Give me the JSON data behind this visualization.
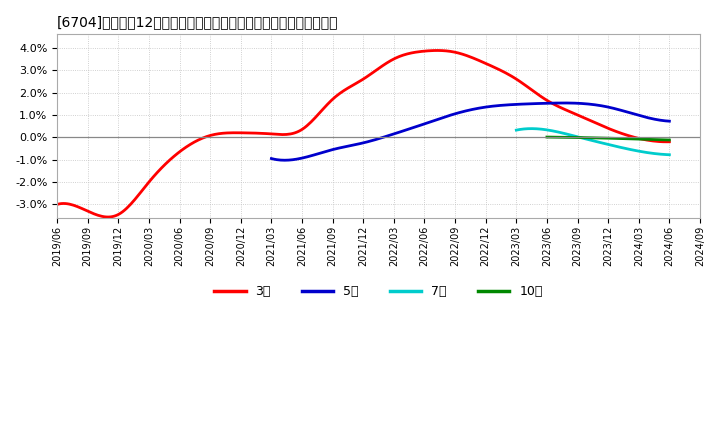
{
  "title": "[6704]　売上高12か月移動合計の対前年同期増減率の平均値の推移",
  "series": {
    "3年": {
      "color": "#ff0000",
      "dates": [
        "2019/06",
        "2019/09",
        "2019/12",
        "2020/03",
        "2020/06",
        "2020/09",
        "2020/12",
        "2021/03",
        "2021/06",
        "2021/09",
        "2021/12",
        "2022/03",
        "2022/06",
        "2022/09",
        "2022/12",
        "2023/03",
        "2023/06",
        "2023/09",
        "2023/12",
        "2024/03",
        "2024/06"
      ],
      "values": [
        -3.0,
        -3.3,
        -3.45,
        -2.0,
        -0.65,
        0.08,
        0.2,
        0.15,
        0.35,
        1.7,
        2.6,
        3.5,
        3.85,
        3.8,
        3.3,
        2.6,
        1.65,
        1.0,
        0.4,
        -0.05,
        -0.2
      ]
    },
    "5年": {
      "color": "#0000cc",
      "dates": [
        "2021/03",
        "2021/06",
        "2021/09",
        "2021/12",
        "2022/03",
        "2022/06",
        "2022/09",
        "2022/12",
        "2023/03",
        "2023/06",
        "2023/09",
        "2023/12",
        "2024/03",
        "2024/06"
      ],
      "values": [
        -0.95,
        -0.93,
        -0.55,
        -0.25,
        0.15,
        0.6,
        1.05,
        1.35,
        1.47,
        1.52,
        1.52,
        1.35,
        0.98,
        0.72
      ]
    },
    "7年": {
      "color": "#00cccc",
      "dates": [
        "2023/03",
        "2023/06",
        "2023/09",
        "2023/12",
        "2024/03",
        "2024/06"
      ],
      "values": [
        0.32,
        0.33,
        0.02,
        -0.32,
        -0.62,
        -0.78
      ]
    },
    "10年": {
      "color": "#008800",
      "dates": [
        "2023/06",
        "2023/09",
        "2023/12",
        "2024/03",
        "2024/06"
      ],
      "values": [
        0.01,
        -0.01,
        -0.04,
        -0.08,
        -0.12
      ]
    }
  },
  "xlim_start": "2019/06",
  "xlim_end": "2024/09",
  "ylim": [
    -3.6,
    4.6
  ],
  "yticks": [
    -3.0,
    -2.0,
    -1.0,
    0.0,
    1.0,
    2.0,
    3.0,
    4.0
  ],
  "xticks": [
    "2019/06",
    "2019/09",
    "2019/12",
    "2020/03",
    "2020/06",
    "2020/09",
    "2020/12",
    "2021/03",
    "2021/06",
    "2021/09",
    "2021/12",
    "2022/03",
    "2022/06",
    "2022/09",
    "2022/12",
    "2023/03",
    "2023/06",
    "2023/09",
    "2023/12",
    "2024/03",
    "2024/06",
    "2024/09"
  ],
  "background_color": "#ffffff",
  "plot_bg_color": "#ffffff",
  "grid_color": "#bbbbbb",
  "legend_labels": [
    "3年",
    "5年",
    "7年",
    "10年"
  ],
  "legend_colors": [
    "#ff0000",
    "#0000cc",
    "#00cccc",
    "#008800"
  ]
}
